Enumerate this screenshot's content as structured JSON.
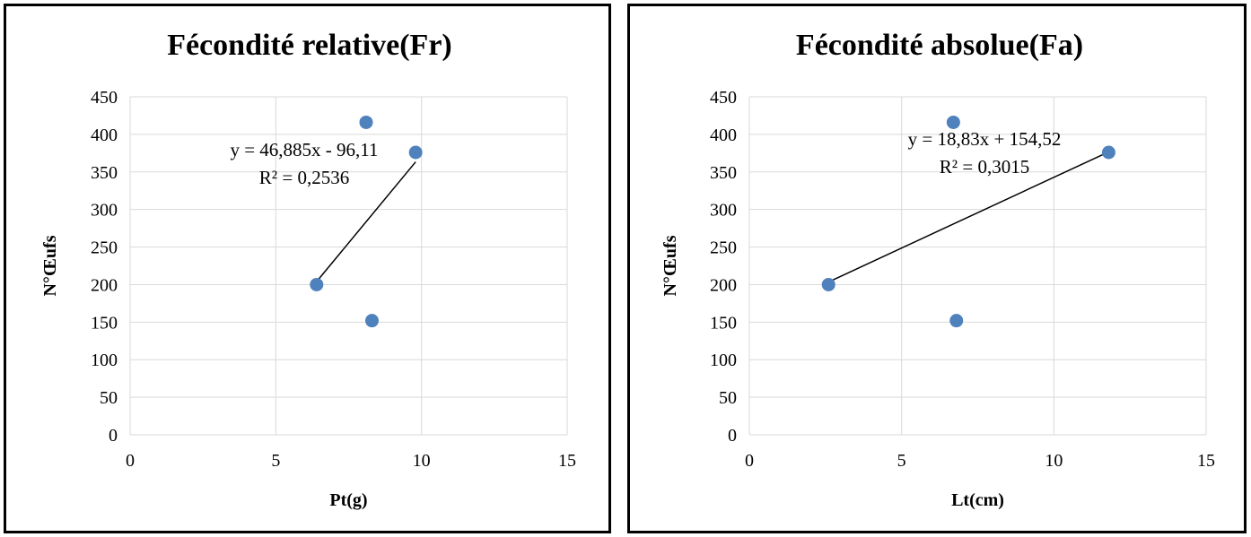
{
  "chart_data": [
    {
      "type": "scatter",
      "title": "Fécondité relative(Fr)",
      "xlabel": "Pt(g)",
      "ylabel": "N°Œufs",
      "xlim": [
        0,
        15
      ],
      "ylim": [
        0,
        450
      ],
      "xticks": [
        "0",
        "5",
        "10",
        "15"
      ],
      "yticks": [
        "0",
        "50",
        "100",
        "150",
        "200",
        "250",
        "300",
        "350",
        "400",
        "450"
      ],
      "grid": "horizontal",
      "legend": "none",
      "points": [
        {
          "x": 6.4,
          "y": 200
        },
        {
          "x": 8.1,
          "y": 416
        },
        {
          "x": 9.8,
          "y": 376
        },
        {
          "x": 8.3,
          "y": 152
        }
      ],
      "trendline": {
        "type": "linear",
        "slope": 46.885,
        "intercept": -96.11,
        "x_range": [
          6.4,
          9.8
        ]
      },
      "annotations": [
        "y = 46,885x - 96,11",
        "R² = 0,2536"
      ],
      "colors": {
        "points": "#4f81bd"
      }
    },
    {
      "type": "scatter",
      "title": "Fécondité absolue(Fa)",
      "xlabel": "Lt(cm)",
      "ylabel": "N°Œufs",
      "xlim": [
        0,
        15
      ],
      "ylim": [
        0,
        450
      ],
      "xticks": [
        "0",
        "5",
        "10",
        "15"
      ],
      "yticks": [
        "0",
        "50",
        "100",
        "150",
        "200",
        "250",
        "300",
        "350",
        "400",
        "450"
      ],
      "grid": "horizontal",
      "legend": "none",
      "points": [
        {
          "x": 2.6,
          "y": 200
        },
        {
          "x": 6.7,
          "y": 416
        },
        {
          "x": 11.8,
          "y": 376
        },
        {
          "x": 6.8,
          "y": 152
        }
      ],
      "trendline": {
        "type": "linear",
        "slope": 18.83,
        "intercept": 154.52,
        "x_range": [
          2.6,
          11.8
        ]
      },
      "annotations": [
        "y = 18,83x + 154,52",
        "R² = 0,3015"
      ],
      "colors": {
        "points": "#4f81bd"
      }
    }
  ]
}
